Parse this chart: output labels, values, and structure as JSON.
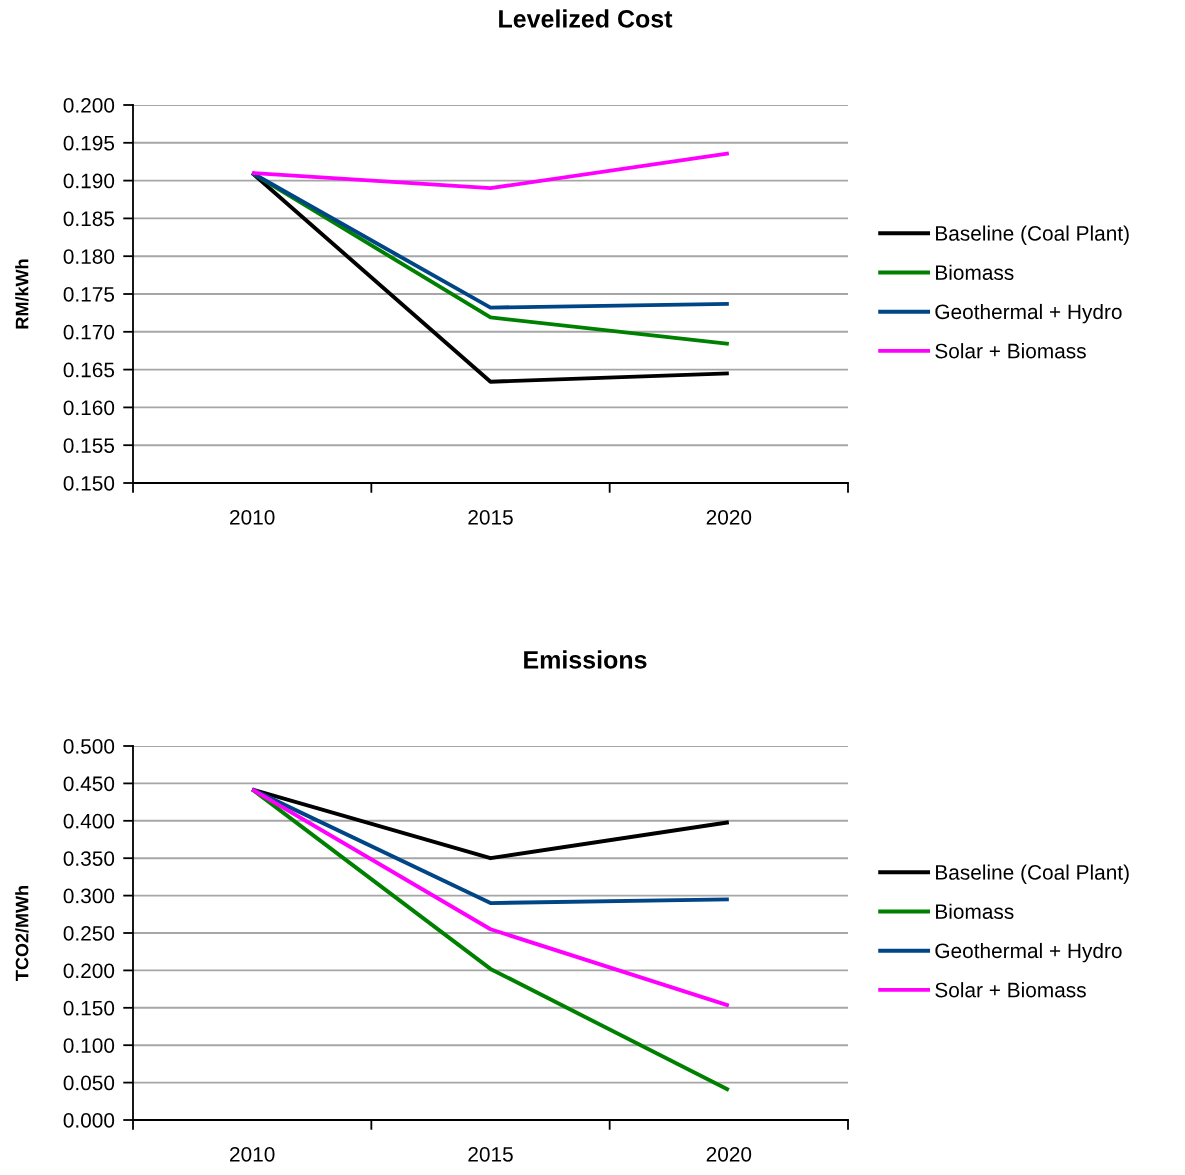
{
  "chart_data": [
    {
      "type": "line",
      "title": "Levelized Cost",
      "ylabel": "RM/kWh",
      "categories": [
        "2010",
        "2015",
        "2020"
      ],
      "series": [
        {
          "name": "Baseline (Coal Plant)",
          "color": "#000000",
          "values": [
            0.191,
            0.1634,
            0.1645
          ]
        },
        {
          "name": "Biomass",
          "color": "#008000",
          "values": [
            0.191,
            0.1719,
            0.1684
          ]
        },
        {
          "name": "Geothermal + Hydro",
          "color": "#004586",
          "values": [
            0.191,
            0.1732,
            0.1737
          ]
        },
        {
          "name": "Solar + Biomass",
          "color": "#ff00ff",
          "values": [
            0.191,
            0.189,
            0.1936
          ]
        }
      ],
      "ylim": [
        0.15,
        0.2
      ],
      "yticks": [
        {
          "value": 0.15,
          "label": "0.150"
        },
        {
          "value": 0.155,
          "label": "0.155"
        },
        {
          "value": 0.16,
          "label": "0.160"
        },
        {
          "value": 0.165,
          "label": "0.165"
        },
        {
          "value": 0.17,
          "label": "0.170"
        },
        {
          "value": 0.175,
          "label": "0.175"
        },
        {
          "value": 0.18,
          "label": "0.180"
        },
        {
          "value": 0.185,
          "label": "0.185"
        },
        {
          "value": 0.19,
          "label": "0.190"
        },
        {
          "value": 0.195,
          "label": "0.195"
        },
        {
          "value": 0.2,
          "label": "0.200"
        }
      ],
      "grid": "y",
      "legend": "right",
      "line_style": "solid"
    },
    {
      "type": "line",
      "title": "Emissions",
      "ylabel": "TCO2/MWh",
      "categories": [
        "2010",
        "2015",
        "2020"
      ],
      "series": [
        {
          "name": "Baseline (Coal Plant)",
          "color": "#000000",
          "values": [
            0.442,
            0.35,
            0.398
          ]
        },
        {
          "name": "Biomass",
          "color": "#008000",
          "values": [
            0.442,
            0.202,
            0.04
          ]
        },
        {
          "name": "Geothermal + Hydro",
          "color": "#004586",
          "values": [
            0.442,
            0.29,
            0.295
          ]
        },
        {
          "name": "Solar + Biomass",
          "color": "#ff00ff",
          "values": [
            0.442,
            0.255,
            0.153
          ]
        }
      ],
      "ylim": [
        0,
        0.5
      ],
      "yticks": [
        {
          "value": 0,
          "label": "0.000"
        },
        {
          "value": 0.05,
          "label": "0.050"
        },
        {
          "value": 0.1,
          "label": "0.100"
        },
        {
          "value": 0.15,
          "label": "0.150"
        },
        {
          "value": 0.2,
          "label": "0.200"
        },
        {
          "value": 0.25,
          "label": "0.250"
        },
        {
          "value": 0.3,
          "label": "0.300"
        },
        {
          "value": 0.35,
          "label": "0.350"
        },
        {
          "value": 0.4,
          "label": "0.400"
        },
        {
          "value": 0.45,
          "label": "0.450"
        },
        {
          "value": 0.5,
          "label": "0.500"
        }
      ],
      "grid": "y",
      "legend": "right",
      "line_style": "solid"
    }
  ]
}
